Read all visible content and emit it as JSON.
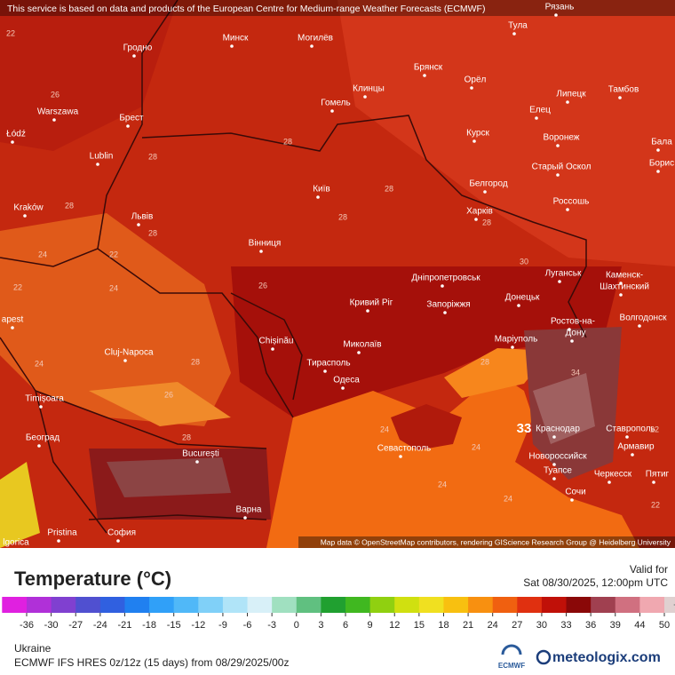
{
  "header": {
    "notice": "This service is based on data and products of the European Centre for Medium-range Weather Forecasts (ECMWF)"
  },
  "map": {
    "cities": [
      "Рязань",
      "Тула",
      "Минск",
      "Могилёв",
      "Гродно",
      "Брянск",
      "Орёл",
      "Клинцы",
      "Тамбов",
      "Липецк",
      "Елец",
      "Warszawa",
      "Брест",
      "Гомель",
      "Курск",
      "Воронеж",
      "Łódź",
      "Lublin",
      "Старый Оскол",
      "Бала",
      "Борис",
      "Белгород",
      "Kraków",
      "Київ",
      "Харків",
      "Россошь",
      "Львів",
      "Вінниця",
      "Дніпропетровськ",
      "Луганськ",
      "Каменск-",
      "Шахтинский",
      "Кривий Ріг",
      "Запоріжжя",
      "Донецьк",
      "Ростов-на-",
      "Дону",
      "Волгодонск",
      "apest",
      "Chișinău",
      "Cluj-Napoca",
      "Миколаїв",
      "Маріуполь",
      "Тирасполь",
      "Одеса",
      "Timișoara",
      "Београд",
      "Краснодар",
      "Ставрополь",
      "Севастополь",
      "Армавир",
      "București",
      "Новороссийск",
      "Туапсе",
      "Черкесск",
      "Пятиг",
      "Сочи",
      "Варна",
      "Pristina",
      "София",
      "lgorica"
    ],
    "contours": [
      "22",
      "26",
      "28",
      "28",
      "28",
      "28",
      "28",
      "28",
      "24",
      "22",
      "22",
      "24",
      "28",
      "26",
      "30",
      "24",
      "28",
      "26",
      "28",
      "28",
      "24",
      "24",
      "24",
      "24",
      "34",
      "22",
      "22",
      "33"
    ],
    "attribution": "Map data © OpenStreetMap contributors, rendering GIScience Research Group @ Heidelberg University"
  },
  "legend": {
    "title": "Temperature (°C)",
    "valid_label": "Valid for",
    "valid_time": "Sat 08/30/2025, 12:00pm UTC",
    "ticks": [
      "-36",
      "-30",
      "-27",
      "-24",
      "-21",
      "-18",
      "-15",
      "-12",
      "-9",
      "-6",
      "-3",
      "0",
      "3",
      "6",
      "9",
      "12",
      "15",
      "18",
      "21",
      "24",
      "27",
      "30",
      "33",
      "36",
      "39",
      "44",
      "50"
    ]
  },
  "footer": {
    "region": "Ukraine",
    "model": "ECMWF IFS HRES 0z/12z (15 days) from 08/29/2025/00z",
    "ecmwf": "ECMWF",
    "brand": "meteologix.com"
  }
}
